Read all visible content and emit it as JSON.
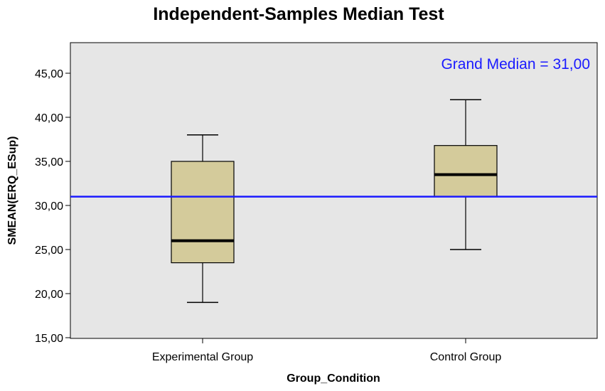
{
  "chart_data": {
    "type": "boxplot",
    "title": "Independent-Samples Median Test",
    "xlabel": "Group_Condition",
    "ylabel": "SMEAN(ERQ_ESup)",
    "ylim": [
      15,
      48
    ],
    "yticks": [
      "15,00",
      "20,00",
      "25,00",
      "30,00",
      "35,00",
      "40,00",
      "45,00"
    ],
    "ytick_values": [
      15,
      20,
      25,
      30,
      35,
      40,
      45
    ],
    "categories": [
      "Experimental Group",
      "Control Group"
    ],
    "boxes": [
      {
        "category": "Experimental Group",
        "min": 19,
        "q1": 23.5,
        "median": 26,
        "q3": 35,
        "max": 38
      },
      {
        "category": "Control Group",
        "min": 25,
        "q1": 31,
        "median": 33.5,
        "q3": 36.8,
        "max": 42
      }
    ],
    "reference_line": {
      "value": 31,
      "label": "Grand Median = 31,00",
      "color": "#1a1aff"
    },
    "colors": {
      "box_fill": "#d4cb9b",
      "plot_bg": "#e6e6e6"
    },
    "grid": false
  }
}
